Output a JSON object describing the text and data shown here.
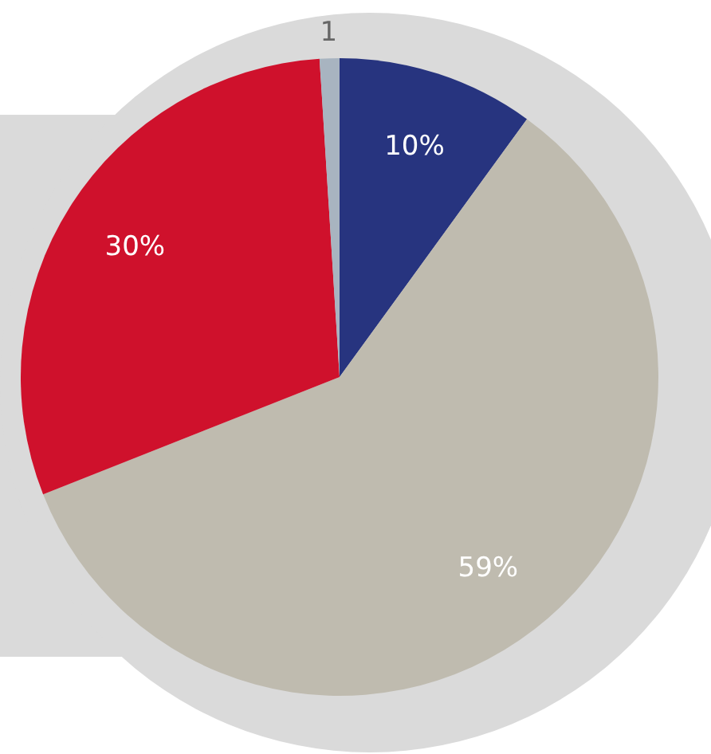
{
  "chart_data": {
    "type": "pie",
    "categories": [
      null,
      null,
      null,
      null
    ],
    "values": [
      10,
      59,
      30,
      1
    ],
    "colors": [
      "#27347f",
      "#bfbbaf",
      "#cf112c",
      "#a8b4c0"
    ],
    "value_labels": [
      "10%",
      "59%",
      "30%",
      "1"
    ]
  }
}
